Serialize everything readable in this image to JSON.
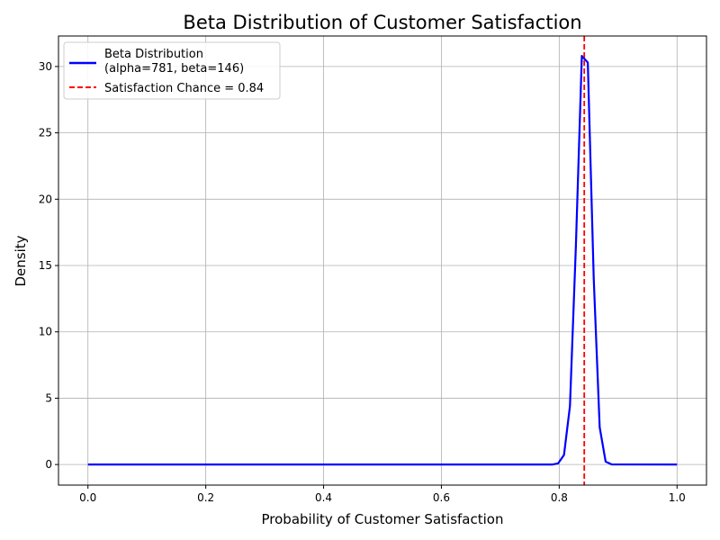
{
  "chart_data": {
    "type": "line",
    "title": "Beta Distribution of Customer Satisfaction",
    "xlabel": "Probability of Customer Satisfaction",
    "ylabel": "Density",
    "xlim": [
      -0.05,
      1.05
    ],
    "ylim": [
      -1.55,
      32.3
    ],
    "xticks": [
      0.0,
      0.2,
      0.4,
      0.6,
      0.8,
      1.0
    ],
    "xtick_labels": [
      "0.0",
      "0.2",
      "0.4",
      "0.6",
      "0.8",
      "1.0"
    ],
    "yticks": [
      0,
      5,
      10,
      15,
      20,
      25,
      30
    ],
    "ytick_labels": [
      "0",
      "5",
      "10",
      "15",
      "20",
      "25",
      "30"
    ],
    "grid": true,
    "legend_position": "top-left",
    "series": [
      {
        "name": "Beta Distribution\n(alpha=781, beta=146)",
        "legend_lines": [
          "Beta Distribution",
          "(alpha=781, beta=146)"
        ],
        "color": "#0000ff",
        "style": "solid",
        "x": [
          0.0,
          0.7879,
          0.798,
          0.8081,
          0.8182,
          0.8283,
          0.8384,
          0.8485,
          0.8586,
          0.8687,
          0.8788,
          0.8889,
          1.0
        ],
        "y": [
          0.0,
          0.0,
          0.08,
          0.72,
          4.4,
          16.5,
          30.8,
          30.3,
          14.0,
          2.8,
          0.22,
          0.01,
          0.0
        ]
      }
    ],
    "vlines": [
      {
        "name": "Satisfaction Chance = 0.84",
        "x": 0.8425,
        "color": "#ff0000",
        "style": "dashed"
      }
    ]
  }
}
